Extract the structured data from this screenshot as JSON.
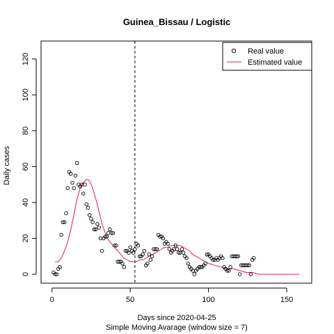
{
  "chart_data": {
    "type": "scatter",
    "title": "Guinea_Bissau / Logistic",
    "xlabel": "Days since 2020-04-25",
    "subtitle": "Simple Moving Avarage (window size = 7)",
    "ylabel": "Daily cases",
    "xlim": [
      -7,
      166
    ],
    "ylim": [
      -5,
      130
    ],
    "x_ticks": [
      0,
      50,
      100,
      150
    ],
    "y_ticks": [
      0,
      20,
      40,
      60,
      80,
      100,
      120
    ],
    "vline_x": 53,
    "legend_position": "top-right",
    "series": [
      {
        "name": "Real value",
        "kind": "points",
        "color": "#000000",
        "x": [
          1,
          2,
          3,
          4,
          5,
          6,
          7,
          8,
          9,
          10,
          11,
          12,
          13,
          14,
          15,
          16,
          17,
          18,
          19,
          20,
          21,
          22,
          23,
          24,
          25,
          26,
          27,
          28,
          29,
          30,
          31,
          32,
          33,
          34,
          35,
          36,
          37,
          38,
          39,
          40,
          41,
          42,
          43,
          44,
          45,
          46,
          47,
          48,
          49,
          50,
          51,
          52,
          53,
          54,
          55,
          56,
          57,
          58,
          59,
          60,
          61,
          62,
          63,
          64,
          65,
          66,
          67,
          68,
          69,
          70,
          71,
          72,
          73,
          74,
          75,
          76,
          77,
          78,
          79,
          80,
          81,
          82,
          83,
          84,
          85,
          86,
          87,
          88,
          89,
          90,
          91,
          92,
          93,
          94,
          95,
          96,
          97,
          98,
          99,
          100,
          101,
          102,
          103,
          104,
          105,
          106,
          107,
          108,
          109,
          110,
          111,
          112,
          113,
          114,
          115,
          116,
          117,
          118,
          119,
          120,
          121,
          122,
          123,
          124,
          125,
          126,
          127,
          128,
          129
        ],
        "y": [
          1,
          0,
          0,
          3,
          4,
          22,
          29,
          29,
          34,
          48,
          57,
          56,
          51,
          48,
          55,
          62,
          50,
          49,
          50,
          45,
          50,
          39,
          37,
          33,
          31,
          29,
          25,
          25,
          28,
          26,
          20,
          13,
          20,
          21,
          21,
          23,
          25,
          23,
          23,
          16,
          16,
          7,
          7,
          7,
          6,
          4,
          13,
          13,
          12,
          15,
          13,
          12,
          14,
          17,
          16,
          10,
          10,
          11,
          13,
          5,
          6,
          11,
          8,
          10,
          14,
          14,
          14,
          22,
          21,
          21,
          20,
          17,
          18,
          17,
          14,
          12,
          13,
          14,
          16,
          14,
          12,
          12,
          14,
          12,
          10,
          9,
          6,
          4,
          3,
          2,
          0,
          2,
          3,
          4,
          4,
          4,
          5,
          6,
          11,
          11,
          10,
          9,
          8,
          8,
          9,
          8,
          9,
          10,
          9,
          4,
          3,
          2,
          2,
          4,
          10,
          10,
          10,
          10,
          10,
          0,
          5,
          5,
          5,
          5,
          5,
          5,
          0,
          8,
          9
        ]
      },
      {
        "name": "Estimated value",
        "kind": "line",
        "color": "#d6204f",
        "x": [
          2,
          4,
          6,
          8,
          10,
          12,
          14,
          16,
          18,
          20,
          22,
          24,
          26,
          28,
          30,
          32,
          34,
          36,
          38,
          40,
          42,
          44,
          46,
          48,
          50,
          52,
          54,
          56,
          58,
          60,
          62,
          64,
          66,
          68,
          70,
          72,
          74,
          76,
          78,
          80,
          82,
          84,
          86,
          88,
          90,
          92,
          94,
          96,
          98,
          100,
          104,
          108,
          112,
          116,
          120,
          124,
          128,
          132,
          136,
          140,
          144,
          148,
          152,
          156,
          158
        ],
        "y": [
          7,
          7,
          9,
          13,
          18,
          25,
          33,
          42,
          48,
          51,
          53,
          52,
          48,
          42,
          35,
          28,
          23,
          19,
          17,
          15,
          13,
          11,
          9,
          8,
          7,
          7,
          7,
          8,
          8,
          9,
          10,
          11,
          12,
          13,
          14,
          15,
          15,
          16,
          16,
          16,
          16,
          15,
          14,
          13,
          11,
          10,
          9,
          8,
          7,
          6,
          5,
          4,
          3,
          3,
          2,
          1,
          1,
          0,
          0,
          0,
          0,
          0,
          0,
          0,
          0
        ]
      }
    ]
  }
}
